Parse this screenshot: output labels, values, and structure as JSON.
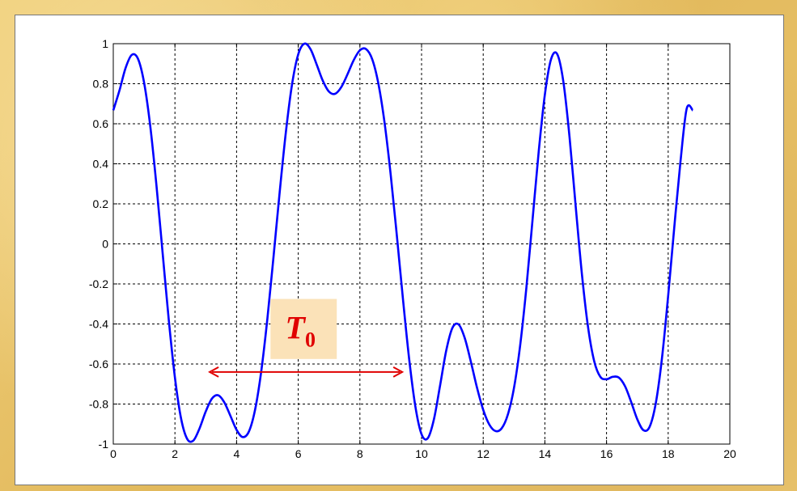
{
  "chart_data": {
    "type": "line",
    "title": "",
    "xlabel": "",
    "ylabel": "",
    "xlim": [
      0,
      20
    ],
    "ylim": [
      -1,
      1
    ],
    "x_ticks": [
      0,
      2,
      4,
      6,
      8,
      10,
      12,
      14,
      16,
      18,
      20
    ],
    "y_ticks": [
      -1,
      -0.8,
      -0.6,
      -0.4,
      -0.2,
      0,
      0.2,
      0.4,
      0.6,
      0.8,
      1
    ],
    "x_tick_labels": [
      "0",
      "2",
      "4",
      "6",
      "8",
      "10",
      "12",
      "14",
      "16",
      "18",
      "20"
    ],
    "y_tick_labels": [
      "-1",
      "-0.8",
      "-0.6",
      "-0.4",
      "-0.2",
      "0",
      "0.2",
      "0.4",
      "0.6",
      "0.8",
      "1"
    ],
    "grid": true,
    "series": [
      {
        "color": "#0000ff",
        "x": [
          0,
          0.2,
          0.4,
          0.6,
          0.8,
          1.0,
          1.2,
          1.4,
          1.6,
          1.8,
          2.0,
          2.2,
          2.4,
          2.6,
          2.8,
          3.0,
          3.2,
          3.4,
          3.6,
          3.8,
          4.0,
          4.2,
          4.4,
          4.6,
          4.8,
          5.0,
          5.2,
          5.4,
          5.6,
          5.8,
          6.0,
          6.2,
          6.4,
          6.6,
          6.8,
          7.0,
          7.2,
          7.4,
          7.6,
          7.8,
          8.0,
          8.2,
          8.4,
          8.6,
          8.8,
          9.0,
          9.2,
          9.4,
          9.6,
          9.8,
          10.0,
          10.2,
          10.4,
          10.6,
          10.8,
          11.0,
          11.2,
          11.4,
          11.6,
          11.8,
          12.0,
          12.2,
          12.4,
          12.6,
          12.8,
          13.0,
          13.2,
          13.4,
          13.6,
          13.8,
          14.0,
          14.2,
          14.4,
          14.6,
          14.8,
          15.0,
          15.2,
          15.4,
          15.6,
          15.8,
          16.0,
          16.2,
          16.4,
          16.6,
          16.8,
          17.0,
          17.2,
          17.4,
          17.6,
          17.8,
          18.0,
          18.2,
          18.4,
          18.6,
          18.8
        ],
        "y": [
          0.667,
          0.766,
          0.879,
          0.944,
          0.925,
          0.805,
          0.588,
          0.293,
          -0.044,
          -0.38,
          -0.668,
          -0.873,
          -0.975,
          -0.982,
          -0.921,
          -0.837,
          -0.773,
          -0.756,
          -0.791,
          -0.859,
          -0.929,
          -0.965,
          -0.937,
          -0.828,
          -0.636,
          -0.372,
          -0.061,
          0.262,
          0.56,
          0.798,
          0.947,
          1.0,
          0.972,
          0.895,
          0.814,
          0.76,
          0.75,
          0.784,
          0.848,
          0.918,
          0.967,
          0.973,
          0.922,
          0.8,
          0.605,
          0.344,
          0.039,
          -0.281,
          -0.578,
          -0.813,
          -0.951,
          -0.971,
          -0.877,
          -0.708,
          -0.533,
          -0.42,
          -0.402,
          -0.47,
          -0.589,
          -0.719,
          -0.829,
          -0.903,
          -0.935,
          -0.921,
          -0.852,
          -0.718,
          -0.505,
          -0.219,
          0.12,
          0.461,
          0.746,
          0.922,
          0.948,
          0.81,
          0.534,
          0.187,
          -0.149,
          -0.415,
          -0.586,
          -0.664,
          -0.676,
          -0.664,
          -0.668,
          -0.711,
          -0.79,
          -0.877,
          -0.931,
          -0.913,
          -0.794,
          -0.569,
          -0.258,
          0.087,
          0.413,
          0.675,
          0.667
        ]
      }
    ],
    "annotation": {
      "label": "T",
      "subscript": "0",
      "x_start": 3.1,
      "x_end": 9.4,
      "y": -0.64,
      "color": "#e00000"
    }
  }
}
